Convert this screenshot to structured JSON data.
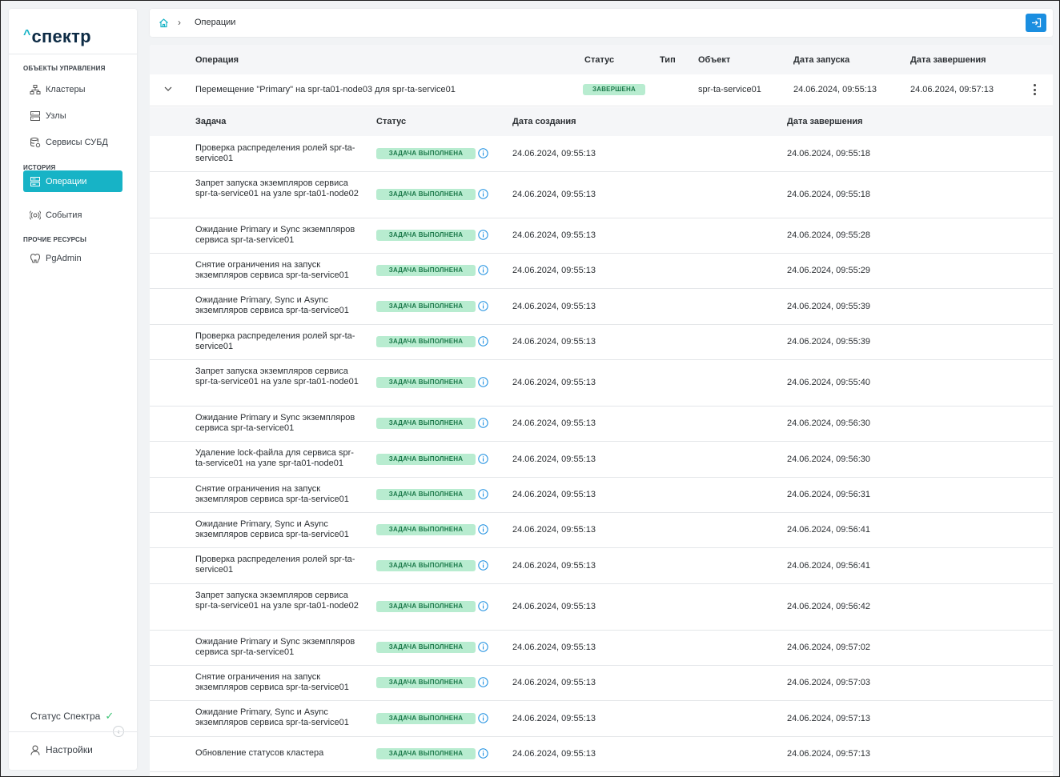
{
  "app": {
    "logo_text": "спектр",
    "logo_caret": "^"
  },
  "sidebar": {
    "sections": [
      {
        "label": "ОБЪЕКТЫ УПРАВЛЕНИЯ",
        "items": [
          {
            "label": "Кластеры",
            "icon": "cluster-icon"
          },
          {
            "label": "Узлы",
            "icon": "server-icon"
          },
          {
            "label": "Сервисы СУБД",
            "icon": "database-icon"
          }
        ]
      },
      {
        "label": "ИСТОРИЯ",
        "items": [
          {
            "label": "Операции",
            "icon": "operations-icon",
            "active": true
          },
          {
            "label": "События",
            "icon": "events-icon"
          }
        ]
      },
      {
        "label": "ПРОЧИЕ РЕСУРСЫ",
        "items": [
          {
            "label": "PgAdmin",
            "icon": "pgadmin-icon"
          }
        ]
      }
    ],
    "status_label": "Статус Спектра",
    "settings_label": "Настройки"
  },
  "breadcrumb": {
    "current": "Операции"
  },
  "operations_table": {
    "headers": [
      "Операция",
      "Статус",
      "Тип",
      "Объект",
      "Дата запуска",
      "Дата завершения"
    ],
    "row": {
      "operation": "Перемещение \"Primary\" на spr-ta01-node03 для spr-ta-service01",
      "status": "ЗАВЕРШЕНА",
      "type": "",
      "object": "spr-ta-service01",
      "started": "24.06.2024, 09:55:13",
      "finished": "24.06.2024, 09:57:13"
    }
  },
  "tasks_table": {
    "headers": [
      "Задача",
      "Статус",
      "Дата создания",
      "Дата завершения"
    ],
    "rows": [
      {
        "name": "Проверка распределения ролей spr-ta-service01",
        "status": "ЗАДАЧА ВЫПОЛНЕНА",
        "created": "24.06.2024, 09:55:13",
        "finished": "24.06.2024, 09:55:18"
      },
      {
        "name": "Запрет запуска экземпляров сервиса spr-ta-service01 на узле spr-ta01-node02",
        "status": "ЗАДАЧА ВЫПОЛНЕНА",
        "created": "24.06.2024, 09:55:13",
        "finished": "24.06.2024, 09:55:18"
      },
      {
        "name": "Ожидание Primary и Sync экземпляров сервиса spr-ta-service01",
        "status": "ЗАДАЧА ВЫПОЛНЕНА",
        "created": "24.06.2024, 09:55:13",
        "finished": "24.06.2024, 09:55:28"
      },
      {
        "name": "Снятие ограничения на запуск экземпляров сервиса spr-ta-service01",
        "status": "ЗАДАЧА ВЫПОЛНЕНА",
        "created": "24.06.2024, 09:55:13",
        "finished": "24.06.2024, 09:55:29"
      },
      {
        "name": "Ожидание Primary, Sync и Async экземпляров сервиса spr-ta-service01",
        "status": "ЗАДАЧА ВЫПОЛНЕНА",
        "created": "24.06.2024, 09:55:13",
        "finished": "24.06.2024, 09:55:39"
      },
      {
        "name": "Проверка распределения ролей spr-ta-service01",
        "status": "ЗАДАЧА ВЫПОЛНЕНА",
        "created": "24.06.2024, 09:55:13",
        "finished": "24.06.2024, 09:55:39"
      },
      {
        "name": "Запрет запуска экземпляров сервиса spr-ta-service01 на узле spr-ta01-node01",
        "status": "ЗАДАЧА ВЫПОЛНЕНА",
        "created": "24.06.2024, 09:55:13",
        "finished": "24.06.2024, 09:55:40"
      },
      {
        "name": "Ожидание Primary и Sync экземпляров сервиса spr-ta-service01",
        "status": "ЗАДАЧА ВЫПОЛНЕНА",
        "created": "24.06.2024, 09:55:13",
        "finished": "24.06.2024, 09:56:30"
      },
      {
        "name": "Удаление lock-файла для сервиса spr-ta-service01 на узле spr-ta01-node01",
        "status": "ЗАДАЧА ВЫПОЛНЕНА",
        "created": "24.06.2024, 09:55:13",
        "finished": "24.06.2024, 09:56:30"
      },
      {
        "name": "Снятие ограничения на запуск экземпляров сервиса spr-ta-service01",
        "status": "ЗАДАЧА ВЫПОЛНЕНА",
        "created": "24.06.2024, 09:55:13",
        "finished": "24.06.2024, 09:56:31"
      },
      {
        "name": "Ожидание Primary, Sync и Async экземпляров сервиса spr-ta-service01",
        "status": "ЗАДАЧА ВЫПОЛНЕНА",
        "created": "24.06.2024, 09:55:13",
        "finished": "24.06.2024, 09:56:41"
      },
      {
        "name": "Проверка распределения ролей spr-ta-service01",
        "status": "ЗАДАЧА ВЫПОЛНЕНА",
        "created": "24.06.2024, 09:55:13",
        "finished": "24.06.2024, 09:56:41"
      },
      {
        "name": "Запрет запуска экземпляров сервиса spr-ta-service01 на узле spr-ta01-node02",
        "status": "ЗАДАЧА ВЫПОЛНЕНА",
        "created": "24.06.2024, 09:55:13",
        "finished": "24.06.2024, 09:56:42"
      },
      {
        "name": "Ожидание Primary и Sync экземпляров сервиса spr-ta-service01",
        "status": "ЗАДАЧА ВЫПОЛНЕНА",
        "created": "24.06.2024, 09:55:13",
        "finished": "24.06.2024, 09:57:02"
      },
      {
        "name": "Снятие ограничения на запуск экземпляров сервиса spr-ta-service01",
        "status": "ЗАДАЧА ВЫПОЛНЕНА",
        "created": "24.06.2024, 09:55:13",
        "finished": "24.06.2024, 09:57:03"
      },
      {
        "name": "Ожидание Primary, Sync и Async экземпляров сервиса spr-ta-service01",
        "status": "ЗАДАЧА ВЫПОЛНЕНА",
        "created": "24.06.2024, 09:55:13",
        "finished": "24.06.2024, 09:57:13"
      },
      {
        "name": "Обновление статусов кластера",
        "status": "ЗАДАЧА ВЫПОЛНЕНА",
        "created": "24.06.2024, 09:55:13",
        "finished": "24.06.2024, 09:57:13"
      }
    ]
  },
  "colors": {
    "accent": "#17b3c6",
    "primary_button": "#1a8ee0",
    "success_badge_bg": "#b8ecd0",
    "success_badge_text": "#1d7a4b",
    "info_icon": "#1a8ee0"
  }
}
